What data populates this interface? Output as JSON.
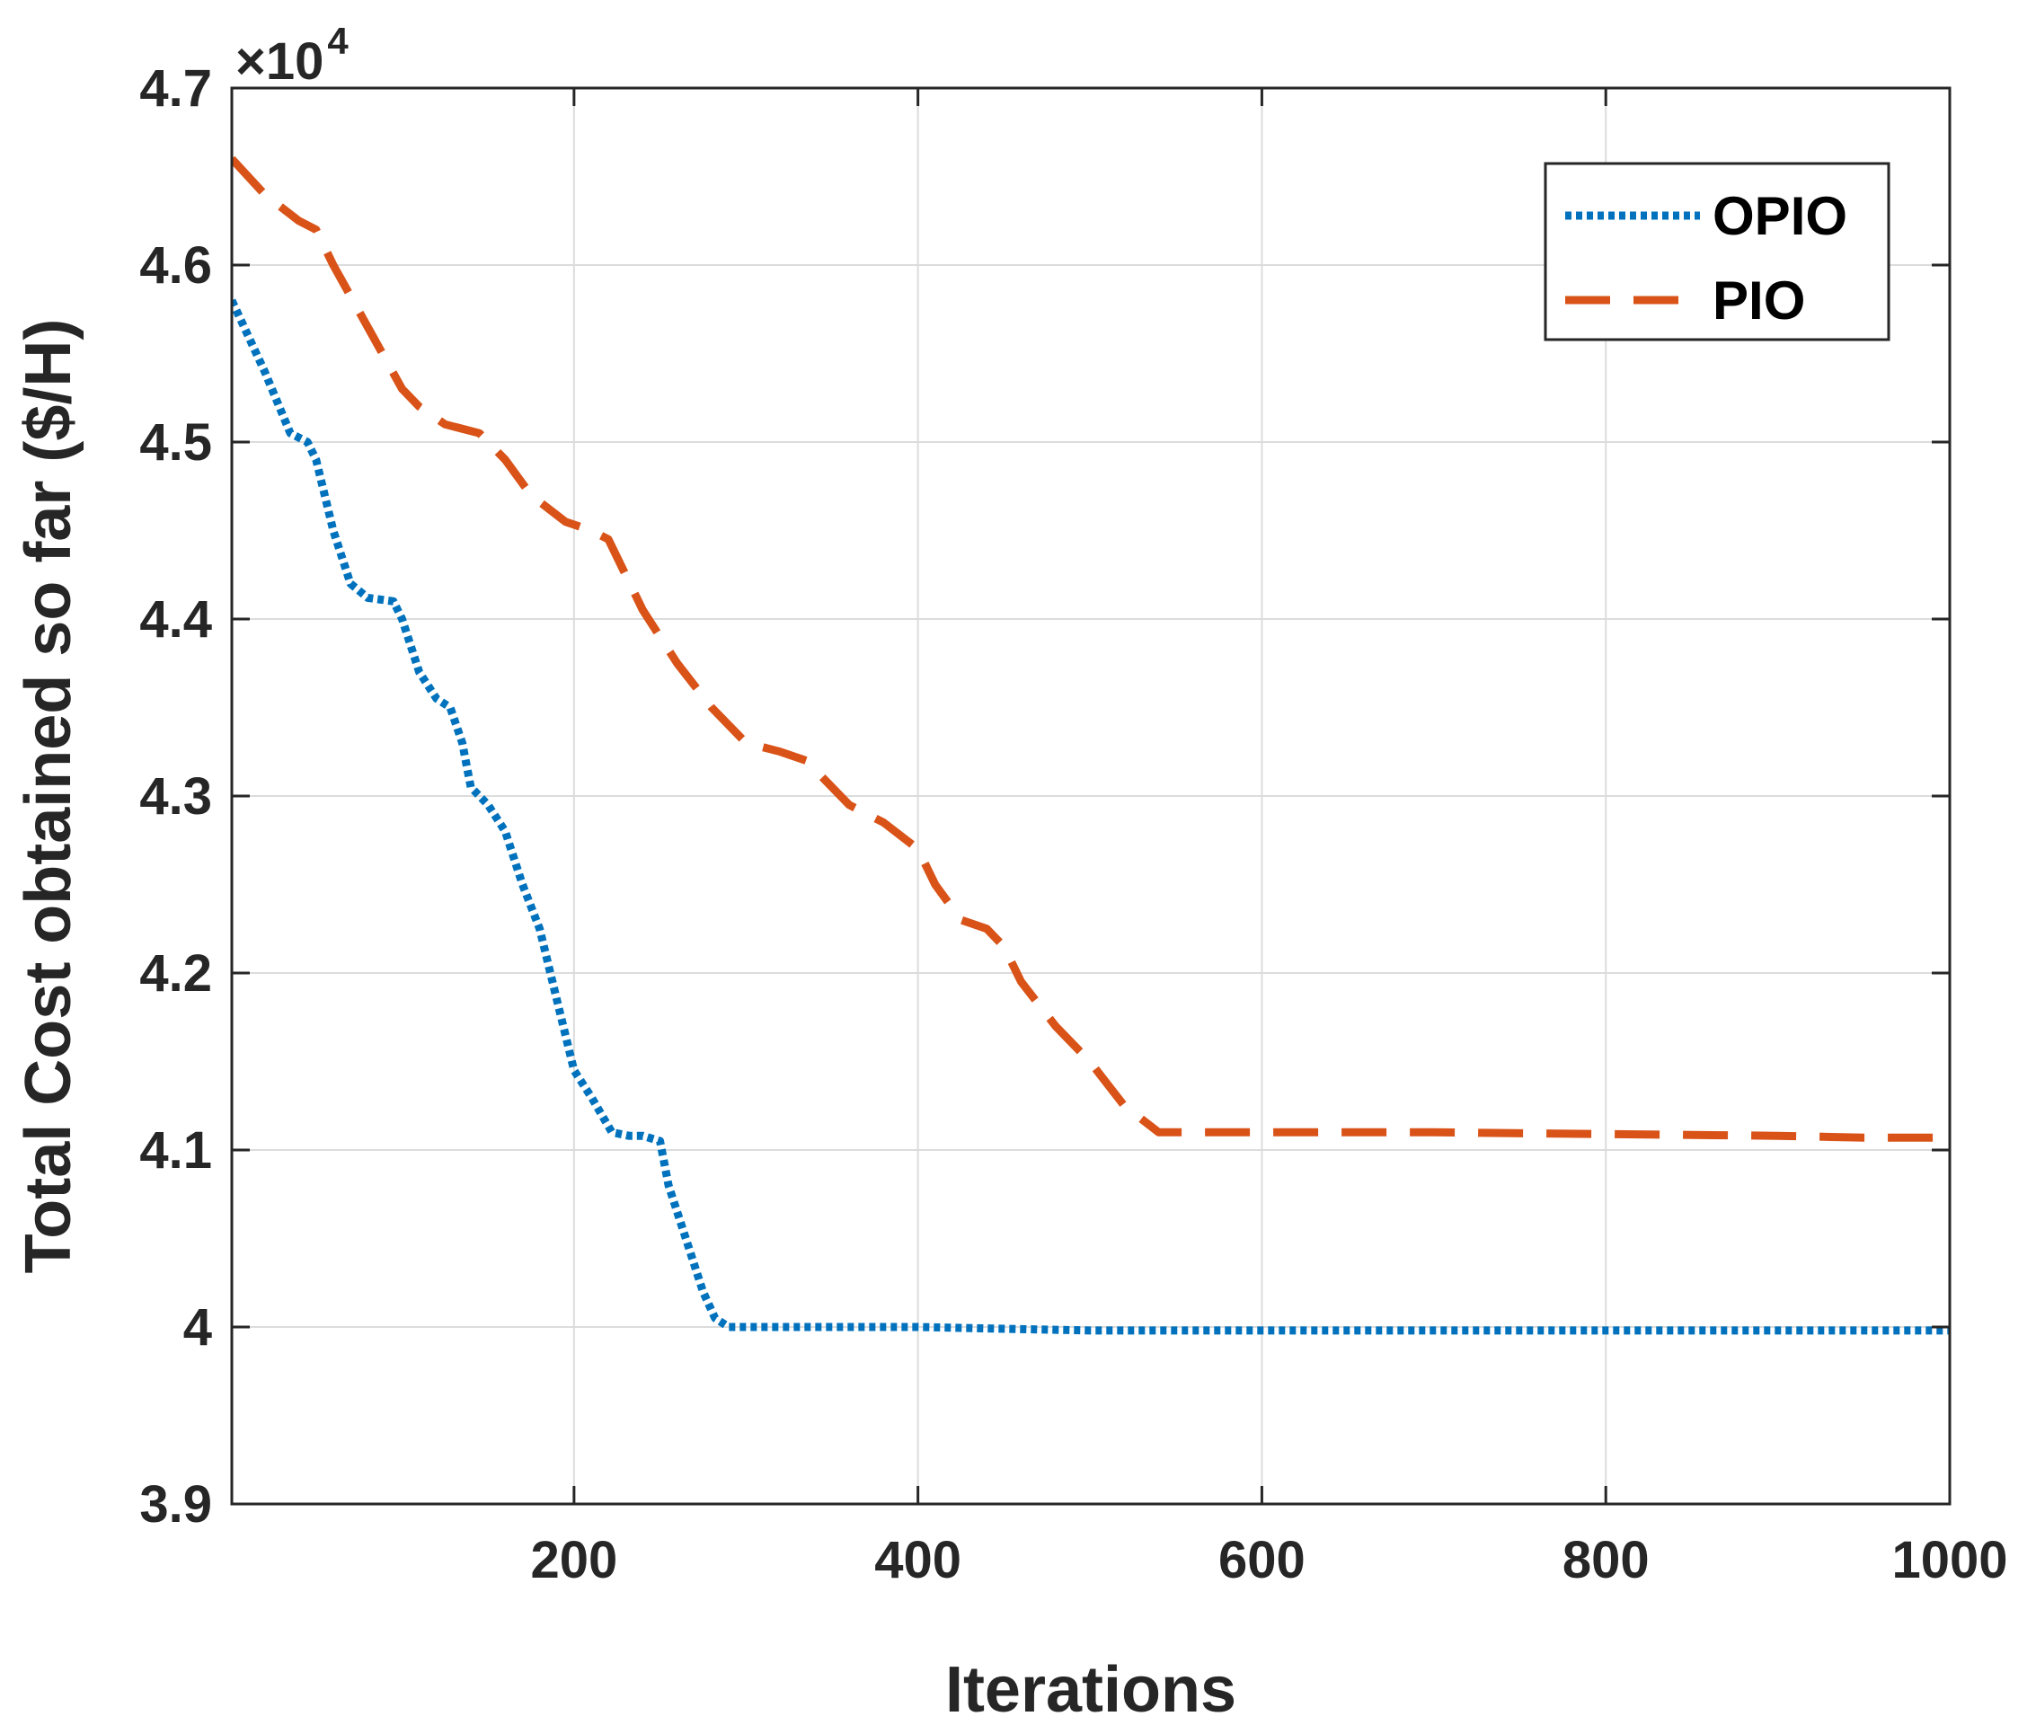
{
  "chart_data": {
    "type": "line",
    "title": "",
    "xlabel": "Iterations",
    "ylabel": "Total Cost obtained so far ($/H)",
    "y_multiplier": {
      "base": "×10",
      "exponent": "4"
    },
    "xlim": [
      1,
      1000
    ],
    "ylim": [
      3.9,
      4.7
    ],
    "x_ticks": [
      200,
      400,
      600,
      800,
      1000
    ],
    "x_tick_labels": [
      "200",
      "400",
      "600",
      "800",
      "1000"
    ],
    "y_ticks": [
      3.9,
      4.0,
      4.1,
      4.2,
      4.3,
      4.4,
      4.5,
      4.6,
      4.7
    ],
    "y_tick_labels": [
      "3.9",
      "4",
      "4.1",
      "4.2",
      "4.3",
      "4.4",
      "4.5",
      "4.6",
      "4.7"
    ],
    "grid": true,
    "legend_position": "top-right",
    "series": [
      {
        "name": "OPIO",
        "color": "#0072BD",
        "style": "dotted",
        "x": [
          1,
          20,
          35,
          45,
          50,
          60,
          70,
          80,
          95,
          100,
          110,
          120,
          128,
          135,
          140,
          150,
          160,
          170,
          180,
          190,
          200,
          210,
          222,
          232,
          240,
          250,
          255,
          265,
          275,
          282,
          290,
          300,
          400,
          500,
          600,
          700,
          800,
          900,
          1000
        ],
        "y": [
          4.58,
          4.54,
          4.505,
          4.5,
          4.49,
          4.45,
          4.42,
          4.412,
          4.41,
          4.4,
          4.37,
          4.355,
          4.35,
          4.33,
          4.305,
          4.295,
          4.28,
          4.25,
          4.225,
          4.185,
          4.145,
          4.13,
          4.11,
          4.108,
          4.108,
          4.105,
          4.08,
          4.05,
          4.02,
          4.005,
          4.0,
          4.0,
          4.0,
          3.998,
          3.998,
          3.998,
          3.998,
          3.998,
          3.998
        ]
      },
      {
        "name": "PIO",
        "color": "#D95319",
        "style": "dashed",
        "x": [
          1,
          20,
          40,
          50,
          60,
          80,
          100,
          110,
          125,
          145,
          160,
          175,
          195,
          210,
          220,
          240,
          260,
          280,
          300,
          320,
          335,
          345,
          360,
          380,
          400,
          410,
          425,
          440,
          450,
          460,
          480,
          500,
          520,
          540,
          555,
          600,
          700,
          800,
          900,
          950,
          1000
        ],
        "y": [
          4.66,
          4.64,
          4.625,
          4.62,
          4.6,
          4.565,
          4.53,
          4.52,
          4.51,
          4.505,
          4.49,
          4.47,
          4.455,
          4.45,
          4.445,
          4.405,
          4.375,
          4.35,
          4.33,
          4.325,
          4.32,
          4.31,
          4.295,
          4.285,
          4.27,
          4.25,
          4.23,
          4.225,
          4.215,
          4.195,
          4.17,
          4.15,
          4.125,
          4.11,
          4.11,
          4.11,
          4.11,
          4.109,
          4.108,
          4.107,
          4.107
        ]
      }
    ]
  }
}
